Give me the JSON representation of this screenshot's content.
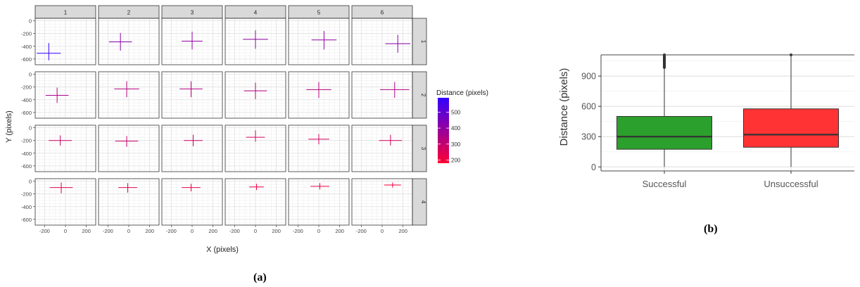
{
  "figure": {
    "caption_a": "(a)",
    "caption_b": "(b)"
  },
  "chart_data": [
    {
      "type": "scatter",
      "panel": "a",
      "title": "",
      "xlabel": "X (pixels)",
      "ylabel": "Y (pixels)",
      "facet_cols": [
        "1",
        "2",
        "3",
        "4",
        "5",
        "6"
      ],
      "facet_rows": [
        "1",
        "2",
        "3",
        "4"
      ],
      "xlim": [
        -290,
        290
      ],
      "ylim": [
        -690,
        40
      ],
      "x_ticks": [
        -200,
        0,
        200
      ],
      "y_ticks": [
        0,
        -200,
        -400,
        -600
      ],
      "grid": true,
      "legend": {
        "title": "Distance (pixels)",
        "ticks": [
          500,
          400,
          300,
          200
        ],
        "range": [
          180,
          590
        ],
        "low_color": "#ff0033",
        "high_color": "#3300ff",
        "position": "right"
      },
      "crosses": [
        {
          "row": 1,
          "col": 1,
          "x": -160,
          "y": -510,
          "half_w": 115,
          "up": 160,
          "down": 110,
          "distance": 590
        },
        {
          "row": 1,
          "col": 2,
          "x": -80,
          "y": -330,
          "half_w": 110,
          "up": 140,
          "down": 140,
          "distance": 420
        },
        {
          "row": 1,
          "col": 3,
          "x": 0,
          "y": -320,
          "half_w": 100,
          "up": 150,
          "down": 130,
          "distance": 400
        },
        {
          "row": 1,
          "col": 4,
          "x": 0,
          "y": -290,
          "half_w": 120,
          "up": 140,
          "down": 150,
          "distance": 400
        },
        {
          "row": 1,
          "col": 5,
          "x": 50,
          "y": -300,
          "half_w": 120,
          "up": 140,
          "down": 150,
          "distance": 400
        },
        {
          "row": 1,
          "col": 6,
          "x": 150,
          "y": -360,
          "half_w": 120,
          "up": 140,
          "down": 140,
          "distance": 420
        },
        {
          "row": 2,
          "col": 1,
          "x": -80,
          "y": -330,
          "half_w": 110,
          "up": 120,
          "down": 120,
          "distance": 350
        },
        {
          "row": 2,
          "col": 2,
          "x": -20,
          "y": -230,
          "half_w": 120,
          "up": 120,
          "down": 130,
          "distance": 330
        },
        {
          "row": 2,
          "col": 3,
          "x": -10,
          "y": -230,
          "half_w": 110,
          "up": 120,
          "down": 130,
          "distance": 330
        },
        {
          "row": 2,
          "col": 4,
          "x": 0,
          "y": -260,
          "half_w": 110,
          "up": 130,
          "down": 130,
          "distance": 340
        },
        {
          "row": 2,
          "col": 5,
          "x": 0,
          "y": -240,
          "half_w": 120,
          "up": 120,
          "down": 130,
          "distance": 330
        },
        {
          "row": 2,
          "col": 6,
          "x": 120,
          "y": -240,
          "half_w": 140,
          "up": 120,
          "down": 130,
          "distance": 340
        },
        {
          "row": 3,
          "col": 1,
          "x": -50,
          "y": -200,
          "half_w": 110,
          "up": 80,
          "down": 80,
          "distance": 280
        },
        {
          "row": 3,
          "col": 2,
          "x": -20,
          "y": -210,
          "half_w": 110,
          "up": 80,
          "down": 90,
          "distance": 290
        },
        {
          "row": 3,
          "col": 3,
          "x": 10,
          "y": -200,
          "half_w": 90,
          "up": 90,
          "down": 90,
          "distance": 280
        },
        {
          "row": 3,
          "col": 4,
          "x": 0,
          "y": -150,
          "half_w": 90,
          "up": 110,
          "down": 70,
          "distance": 270
        },
        {
          "row": 3,
          "col": 5,
          "x": 0,
          "y": -180,
          "half_w": 100,
          "up": 80,
          "down": 80,
          "distance": 270
        },
        {
          "row": 3,
          "col": 6,
          "x": 80,
          "y": -200,
          "half_w": 110,
          "up": 90,
          "down": 80,
          "distance": 280
        },
        {
          "row": 4,
          "col": 1,
          "x": -40,
          "y": -100,
          "half_w": 110,
          "up": 80,
          "down": 90,
          "distance": 240
        },
        {
          "row": 4,
          "col": 2,
          "x": -10,
          "y": -100,
          "half_w": 90,
          "up": 70,
          "down": 80,
          "distance": 230
        },
        {
          "row": 4,
          "col": 3,
          "x": -10,
          "y": -100,
          "half_w": 90,
          "up": 60,
          "down": 60,
          "distance": 220
        },
        {
          "row": 4,
          "col": 4,
          "x": 10,
          "y": -90,
          "half_w": 70,
          "up": 50,
          "down": 50,
          "distance": 210
        },
        {
          "row": 4,
          "col": 5,
          "x": 10,
          "y": -80,
          "half_w": 90,
          "up": 50,
          "down": 50,
          "distance": 210
        },
        {
          "row": 4,
          "col": 6,
          "x": 100,
          "y": -60,
          "half_w": 80,
          "up": 40,
          "down": 40,
          "distance": 200
        }
      ]
    },
    {
      "type": "box",
      "panel": "b",
      "title": "",
      "xlabel": "",
      "ylabel": "Distance (pixels)",
      "categories": [
        "Successful",
        "Unsuccessful"
      ],
      "ylim": [
        -40,
        1110
      ],
      "y_ticks": [
        0,
        300,
        600,
        900
      ],
      "grid": true,
      "boxes": [
        {
          "label": "Successful",
          "min": 0,
          "q1": 175,
          "median": 300,
          "q3": 500,
          "whisker_high": 985,
          "outliers_from": 985,
          "outliers_to": 1110,
          "color": "#2ca02c"
        },
        {
          "label": "Unsuccessful",
          "min": 0,
          "q1": 195,
          "median": 320,
          "q3": 575,
          "whisker_high": 1110,
          "outliers_from": 1110,
          "outliers_to": 1110,
          "color": "#ff3333"
        }
      ]
    }
  ]
}
